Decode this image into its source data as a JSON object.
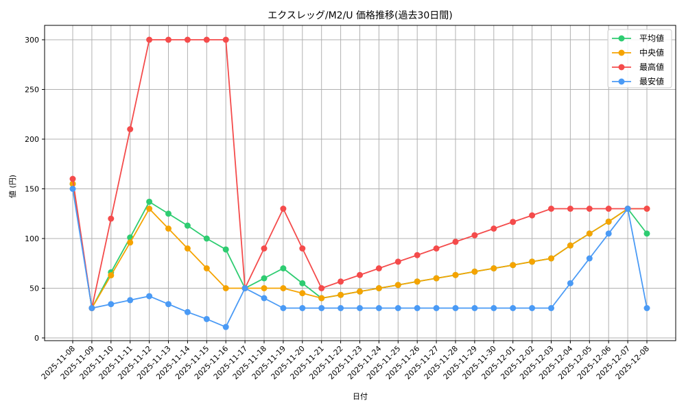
{
  "chart_data": {
    "type": "line",
    "title": "エクスレッグ/M2/U 価格推移(過去30日間)",
    "xlabel": "日付",
    "ylabel": "値 (円)",
    "ylim": [
      0,
      310
    ],
    "yticks": [
      0,
      50,
      100,
      150,
      200,
      250,
      300
    ],
    "grid": true,
    "legend_position": "upper right",
    "categories": [
      "2025-11-08",
      "2025-11-09",
      "2025-11-10",
      "2025-11-11",
      "2025-11-12",
      "2025-11-13",
      "2025-11-14",
      "2025-11-15",
      "2025-11-16",
      "2025-11-17",
      "2025-11-18",
      "2025-11-19",
      "2025-11-20",
      "2025-11-21",
      "2025-11-22",
      "2025-11-23",
      "2025-11-24",
      "2025-11-25",
      "2025-11-26",
      "2025-11-27",
      "2025-11-28",
      "2025-11-29",
      "2025-11-30",
      "2025-12-01",
      "2025-12-02",
      "2025-12-03",
      "2025-12-04",
      "2025-12-05",
      "2025-12-06",
      "2025-12-07",
      "2025-12-08"
    ],
    "series": [
      {
        "name": "平均値",
        "color": "#2ecc71",
        "values": [
          155,
          30,
          66,
          101,
          137,
          125,
          113,
          100,
          89,
          50,
          60,
          70,
          55,
          40,
          43.3,
          46.7,
          50,
          53.3,
          56.7,
          60,
          63.3,
          66.7,
          70,
          73.3,
          76.7,
          80,
          93,
          105,
          117,
          130,
          105
        ]
      },
      {
        "name": "中央値",
        "color": "#f5a300",
        "values": [
          155,
          30,
          63,
          96,
          130,
          110,
          90,
          70,
          50,
          50,
          50,
          50,
          45,
          40,
          43.3,
          46.7,
          50,
          53.3,
          56.7,
          60,
          63.3,
          66.7,
          70,
          73.3,
          76.7,
          80,
          93,
          105,
          117,
          130,
          130
        ]
      },
      {
        "name": "最高値",
        "color": "#f44b4b",
        "values": [
          160,
          30,
          120,
          210,
          300,
          300,
          300,
          300,
          300,
          50,
          90,
          130,
          90,
          50,
          56.7,
          63.3,
          70,
          76.7,
          83.3,
          90,
          96.7,
          103.3,
          110,
          116.7,
          123.3,
          130,
          130,
          130,
          130,
          130,
          130
        ]
      },
      {
        "name": "最安値",
        "color": "#4a9af5",
        "values": [
          150,
          30,
          34,
          38,
          42,
          34,
          26,
          19,
          11,
          50,
          40,
          30,
          30,
          30,
          30,
          30,
          30,
          30,
          30,
          30,
          30,
          30,
          30,
          30,
          30,
          30,
          55,
          80,
          105,
          130,
          30
        ]
      }
    ]
  }
}
